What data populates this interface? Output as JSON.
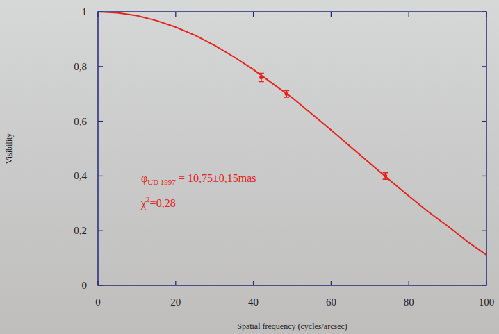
{
  "chart_data": {
    "type": "scatter",
    "xlabel": "Spatial frequency (cycles/arcsec)",
    "ylabel": "Visibility",
    "xlim": [
      0,
      100
    ],
    "ylim": [
      0,
      1
    ],
    "xticks": [
      0,
      20,
      40,
      60,
      80,
      100
    ],
    "yticks": [
      0,
      {
        "value": 0.2,
        "label": "0,2"
      },
      {
        "value": 0.4,
        "label": "0,4"
      },
      {
        "value": 0.6,
        "label": "0,6"
      },
      {
        "value": 0.8,
        "label": "0,8"
      },
      1
    ],
    "grid": false,
    "series": [
      {
        "type": "line",
        "color": "#e3231c",
        "x": [
          0,
          5,
          10,
          15,
          20,
          25,
          30,
          35,
          40,
          45,
          50,
          55,
          60,
          65,
          70,
          75,
          80,
          85,
          90,
          95,
          100
        ],
        "values": [
          1,
          0.996,
          0.986,
          0.968,
          0.944,
          0.914,
          0.877,
          0.835,
          0.789,
          0.737,
          0.686,
          0.627,
          0.568,
          0.507,
          0.446,
          0.386,
          0.327,
          0.269,
          0.217,
          0.161,
          0.111
        ]
      },
      {
        "type": "scatter",
        "color": "#e3231c",
        "marker": "circle",
        "x": [
          42,
          48.5,
          74
        ],
        "values": [
          0.76,
          0.7,
          0.4
        ],
        "errors": [
          0.015,
          0.012,
          0.012
        ]
      }
    ],
    "annotations": [
      {
        "color": "#e3231c",
        "parts": [
          {
            "text": "φ"
          },
          {
            "text": "UD 1997",
            "sub": true
          },
          {
            "text": " = 10,75±0,15mas"
          }
        ]
      },
      {
        "color": "#e3231c",
        "parts": [
          {
            "text": "χ"
          },
          {
            "text": "2",
            "sup": true
          },
          {
            "text": "=0,28"
          }
        ]
      }
    ]
  }
}
